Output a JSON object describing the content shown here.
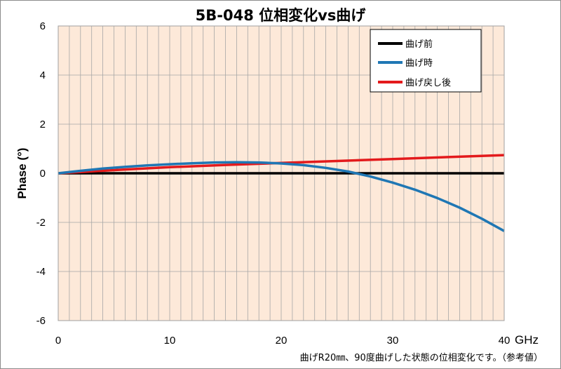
{
  "chart_data": {
    "type": "line",
    "title": "5B-048  位相変化vs曲げ",
    "xlabel": "",
    "x_unit": "GHz",
    "ylabel": "Phase (°)",
    "xlim": [
      0,
      40
    ],
    "ylim": [
      -6,
      6
    ],
    "x_ticks": [
      "0",
      "10",
      "20",
      "30",
      "40"
    ],
    "y_ticks": [
      "6",
      "4",
      "2",
      "0",
      "-2",
      "-4",
      "-6"
    ],
    "grid": true,
    "plot_background": "#fde9d9",
    "legend_position": "top-right",
    "series": [
      {
        "name": "曲げ前",
        "color": "#000000",
        "x": [
          0,
          40
        ],
        "values": [
          0,
          0
        ]
      },
      {
        "name": "曲げ時",
        "color": "#1f77b4",
        "x": [
          0,
          2,
          4,
          6,
          8,
          10,
          12,
          14,
          16,
          18,
          20,
          22,
          24,
          26,
          28,
          30,
          32,
          34,
          36,
          38,
          40
        ],
        "values": [
          0,
          0.1,
          0.19,
          0.26,
          0.32,
          0.37,
          0.41,
          0.44,
          0.45,
          0.44,
          0.4,
          0.33,
          0.22,
          0.07,
          -0.13,
          -0.38,
          -0.67,
          -1.01,
          -1.4,
          -1.85,
          -2.35
        ]
      },
      {
        "name": "曲げ戻し後",
        "color": "#e31a1c",
        "x": [
          0,
          5,
          10,
          15,
          20,
          25,
          30,
          35,
          40
        ],
        "values": [
          0,
          0.13,
          0.25,
          0.34,
          0.42,
          0.5,
          0.58,
          0.66,
          0.74
        ]
      }
    ],
    "caption": "曲げR20㎜、90度曲げした状態の位相変化です。（参考値）"
  }
}
